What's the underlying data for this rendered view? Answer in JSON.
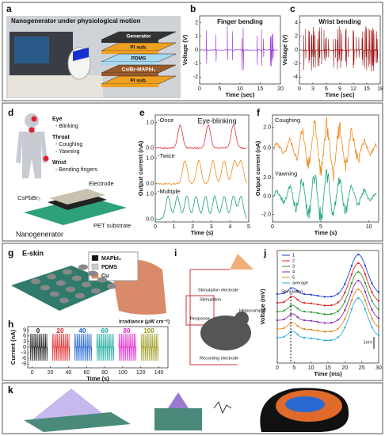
{
  "panels": {
    "a": {
      "label": "a",
      "title": "Nanogenerator under physiological motion",
      "layers": [
        "Generator",
        "PI sub.",
        "PDMS",
        "Cs/Br-MAPbI₃",
        "PI sub."
      ]
    },
    "b": {
      "label": "b",
      "title": "Finger bending",
      "xlabel": "Time (sec)",
      "ylabel": "Voltage (V)",
      "xlim": [
        0,
        20
      ],
      "ylim": [
        -2.5,
        2.5
      ],
      "xticks": [
        0,
        5,
        10,
        15,
        20
      ],
      "yticks": [
        -2,
        -1,
        0,
        1,
        2
      ],
      "color": "#9b30d9"
    },
    "c": {
      "label": "c",
      "title": "Wrist bending",
      "xlabel": "Time (sec)",
      "ylabel": "Voltage (V)",
      "xlim": [
        0,
        18
      ],
      "ylim": [
        -5,
        5
      ],
      "xticks": [
        0,
        3,
        6,
        9,
        12,
        15,
        18
      ],
      "yticks": [
        -4,
        -2,
        0,
        2,
        4
      ],
      "color": "#9b1010"
    },
    "d": {
      "label": "d",
      "sites": [
        {
          "name": "Eye",
          "items": [
            "- Blinking"
          ]
        },
        {
          "name": "Throat",
          "items": [
            "- Coughing",
            "- Yawning"
          ]
        },
        {
          "name": "Wrist",
          "items": [
            "- Bending fingers"
          ]
        }
      ],
      "parts": [
        "Electrode",
        "CsPbBr₃",
        "PET substrate"
      ],
      "caption": "Nanogenerator"
    },
    "e": {
      "label": "e",
      "title": "Eye-blinking",
      "xlabel": "Time (s)",
      "ylabel": "Output current (nA)",
      "xlim": [
        0,
        5
      ],
      "xticks": [
        0,
        1,
        2,
        3,
        4,
        5
      ],
      "subplots": [
        {
          "name": "-Once",
          "color": "#e0303a",
          "ylim": [
            -0.1,
            1.3
          ],
          "yticks": [
            {
              "value": 0,
              "label": "0.0"
            },
            {
              "value": 1,
              "label": "1.0"
            }
          ]
        },
        {
          "name": "-Twice",
          "color": "#f08a1c",
          "ylim": [
            -0.1,
            1.3
          ],
          "yticks": [
            {
              "value": 0,
              "label": "0.0"
            },
            {
              "value": 1,
              "label": "1.0"
            }
          ]
        },
        {
          "name": "-Multiple",
          "color": "#1aa37a",
          "ylim": [
            -0.1,
            1.3
          ],
          "yticks": [
            {
              "value": 0,
              "label": "0.0"
            },
            {
              "value": 1,
              "label": "1.0"
            }
          ]
        }
      ]
    },
    "f": {
      "label": "f",
      "xlabel": "Time (s)",
      "ylabel": "Output current (nA)",
      "xlim": [
        0,
        11
      ],
      "xticks": [
        0,
        5,
        10
      ],
      "subplots": [
        {
          "name": "Coughing",
          "color": "#f08a1c",
          "ylim": [
            -2,
            3.2
          ],
          "yticks": [
            {
              "value": 0,
              "label": "0.0"
            },
            {
              "value": 2,
              "label": "2.0"
            }
          ]
        },
        {
          "name": "Yawning",
          "color": "#1aa37a",
          "ylim": [
            -2.8,
            3
          ],
          "yticks": [
            {
              "value": -2,
              "label": "-2.0"
            },
            {
              "value": 0,
              "label": "0.0"
            },
            {
              "value": 2,
              "label": "2.0"
            }
          ]
        }
      ]
    },
    "g": {
      "label": "g",
      "title": "E-skin",
      "legend": [
        "MAPbI₃",
        "PDMS",
        "Cu"
      ]
    },
    "h": {
      "label": "h",
      "xlabel": "Time (s)",
      "ylabel": "Current (nA)",
      "xlim": [
        -5,
        150
      ],
      "ylim": [
        -11,
        11
      ],
      "xticks": [
        0,
        20,
        40,
        60,
        80,
        100,
        120,
        140
      ],
      "yticks": [
        -9,
        -6,
        -3,
        0,
        3,
        6,
        9
      ],
      "annotation": "irradiance (μW cm⁻²)",
      "groups": [
        {
          "irradiance": 0,
          "color": "#111111"
        },
        {
          "irradiance": 20,
          "color": "#e02020"
        },
        {
          "irradiance": 40,
          "color": "#1a5fd0"
        },
        {
          "irradiance": 60,
          "color": "#13a89e"
        },
        {
          "irradiance": 80,
          "color": "#e020c8"
        },
        {
          "irradiance": 100,
          "color": "#9a9a1a"
        }
      ]
    },
    "i": {
      "label": "i",
      "texts": [
        "Stimulation",
        "Response",
        "Stimulation electrode",
        "Hippocampus",
        "Recording electrode"
      ]
    },
    "j": {
      "label": "j",
      "xlabel": "Time (ms)",
      "ylabel": "Voltage (mV)",
      "xlim": [
        0,
        30
      ],
      "xticks": [
        0,
        5,
        10,
        15,
        20,
        25,
        30
      ],
      "annotation": "Stimulation",
      "scale": "1mV",
      "legend": [
        {
          "name": "1",
          "color": "#1f3fd0"
        },
        {
          "name": "2",
          "color": "#e02020"
        },
        {
          "name": "3",
          "color": "#2a9a2a"
        },
        {
          "name": "4",
          "color": "#8a2ab0"
        },
        {
          "name": "5",
          "color": "#e08a1c"
        },
        {
          "name": "average",
          "color": "#2ab0e0"
        }
      ]
    },
    "k": {
      "label": "k"
    }
  }
}
